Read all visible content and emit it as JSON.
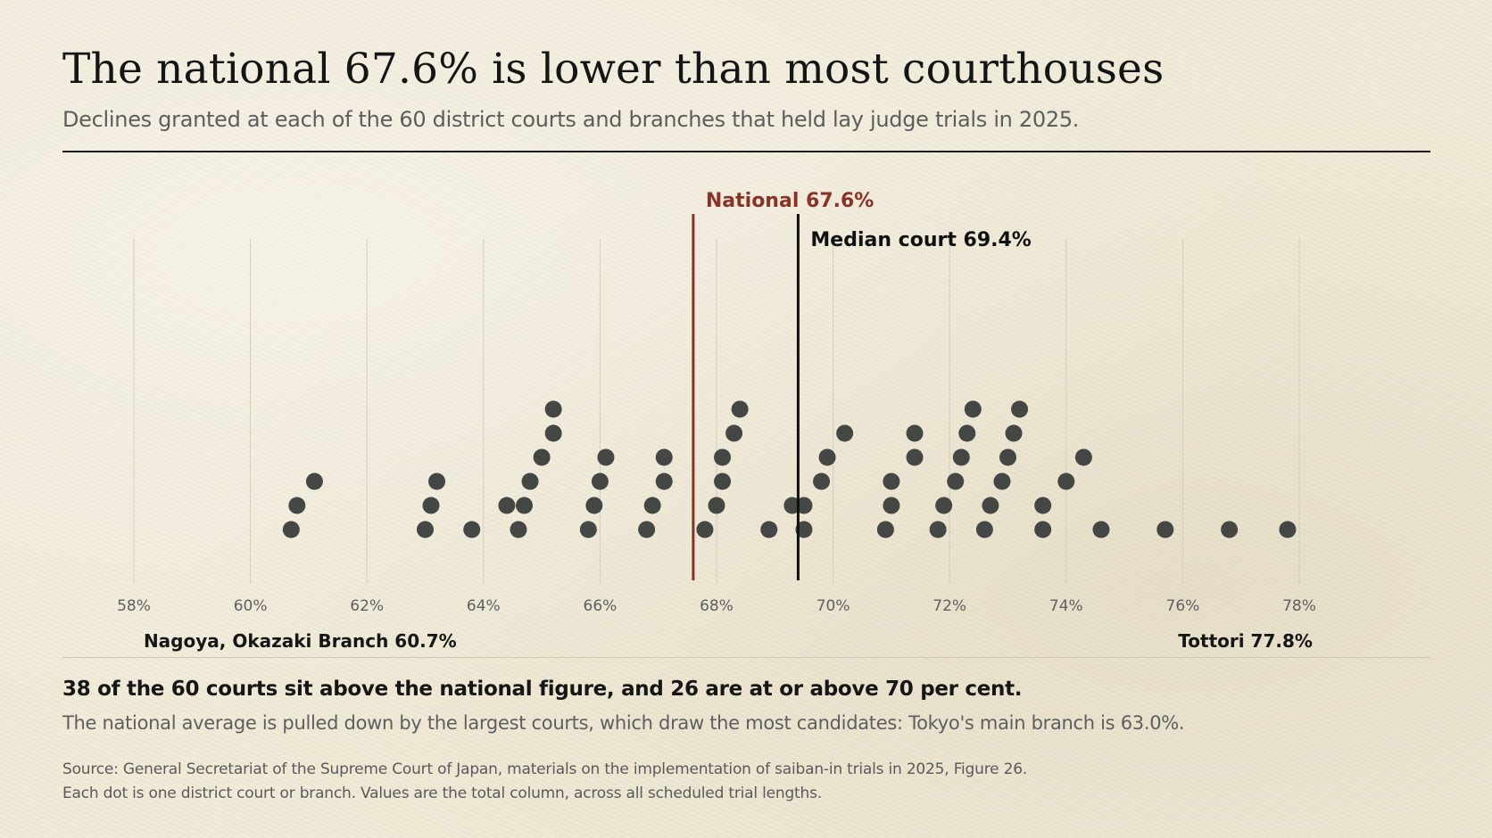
{
  "header": {
    "title": "The national 67.6% is lower than most courthouses",
    "subtitle": "Declines granted at each of the 60 district courts and branches that held lay judge trials in 2025."
  },
  "colors": {
    "dot": "#454745",
    "national": "#8a3226",
    "median": "#111111",
    "gridline": "#d4cfbd",
    "tick_label": "#5f5f5f"
  },
  "chart_data": {
    "type": "scatter",
    "xlim": [
      57.9,
      79.7
    ],
    "x_ticks": [
      58,
      60,
      62,
      64,
      66,
      68,
      70,
      72,
      74,
      76,
      78
    ],
    "x_tick_labels": [
      "58%",
      "60%",
      "62%",
      "64%",
      "66%",
      "68%",
      "70%",
      "72%",
      "74%",
      "76%",
      "78%"
    ],
    "grid": true,
    "points": [
      [
        60.7,
        1
      ],
      [
        60.8,
        2
      ],
      [
        61.1,
        3
      ],
      [
        63.0,
        1
      ],
      [
        63.1,
        2
      ],
      [
        63.2,
        3
      ],
      [
        63.8,
        1
      ],
      [
        64.4,
        2
      ],
      [
        64.6,
        1
      ],
      [
        64.7,
        2
      ],
      [
        64.8,
        3
      ],
      [
        65.0,
        4
      ],
      [
        65.2,
        5
      ],
      [
        65.2,
        6
      ],
      [
        65.8,
        1
      ],
      [
        65.9,
        2
      ],
      [
        66.0,
        3
      ],
      [
        66.1,
        4
      ],
      [
        66.8,
        1
      ],
      [
        66.9,
        2
      ],
      [
        67.1,
        3
      ],
      [
        67.1,
        4
      ],
      [
        67.8,
        1
      ],
      [
        68.0,
        2
      ],
      [
        68.1,
        3
      ],
      [
        68.1,
        4
      ],
      [
        68.3,
        5
      ],
      [
        68.4,
        6
      ],
      [
        68.9,
        1
      ],
      [
        69.3,
        2
      ],
      [
        69.5,
        1
      ],
      [
        69.5,
        2
      ],
      [
        69.8,
        3
      ],
      [
        69.9,
        4
      ],
      [
        70.2,
        5
      ],
      [
        70.9,
        1
      ],
      [
        71.0,
        2
      ],
      [
        71.0,
        3
      ],
      [
        71.4,
        4
      ],
      [
        71.4,
        5
      ],
      [
        71.8,
        1
      ],
      [
        71.9,
        2
      ],
      [
        72.1,
        3
      ],
      [
        72.2,
        4
      ],
      [
        72.3,
        5
      ],
      [
        72.4,
        6
      ],
      [
        72.6,
        1
      ],
      [
        72.7,
        2
      ],
      [
        72.9,
        3
      ],
      [
        73.0,
        4
      ],
      [
        73.1,
        5
      ],
      [
        73.2,
        6
      ],
      [
        73.6,
        1
      ],
      [
        73.6,
        2
      ],
      [
        74.0,
        3
      ],
      [
        74.3,
        4
      ],
      [
        74.6,
        1
      ],
      [
        75.7,
        1
      ],
      [
        76.8,
        1
      ],
      [
        77.8,
        1
      ]
    ],
    "reference_lines": [
      {
        "label": "National 67.6%",
        "value": 67.6
      },
      {
        "label": "Median court 69.4%",
        "value": 69.4
      }
    ],
    "extremes": [
      {
        "name": "Nagoya, Okazaki Branch",
        "value_label": "60.7%",
        "value": 60.7
      },
      {
        "name": "Tottori",
        "value_label": "77.8%",
        "value": 77.8
      }
    ]
  },
  "finding": "38 of the 60 courts sit above the national figure, and 26 are at or above 70 per cent.",
  "detail": "The national average is pulled down by the largest courts, which draw the most candidates: Tokyo's main branch is 63.0%.",
  "source": {
    "line1": "Source: General Secretariat of the Supreme Court of Japan, materials on the implementation of saiban-in trials in 2025, Figure 26.",
    "line2": "Each dot is one district court or branch. Values are the total column, across all scheduled trial lengths."
  }
}
